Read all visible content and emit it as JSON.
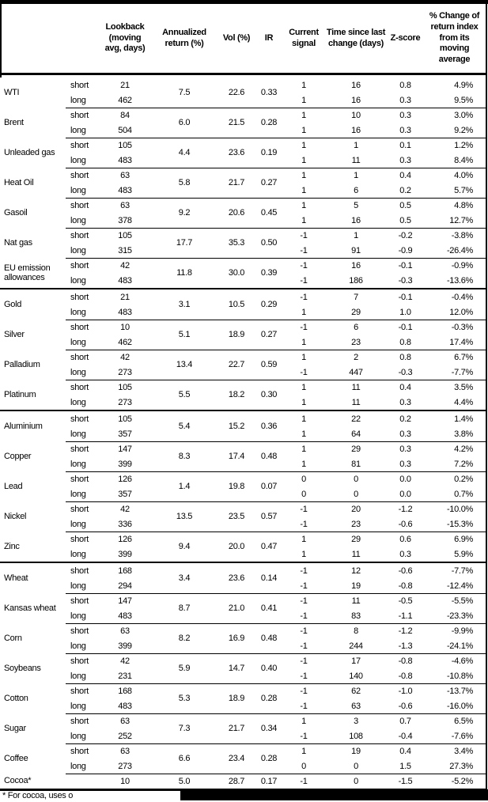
{
  "header": {
    "columns": [
      "Lookback (moving avg, days)",
      "Annualized return (%)",
      "Vol (%)",
      "IR",
      "Current signal",
      "Time since last change (days)",
      "Z-score",
      "% Change of return index from its moving average"
    ]
  },
  "groups": [
    {
      "commodities": [
        {
          "name": "WTI",
          "annualized_return": "7.5",
          "vol": "22.6",
          "ir": "0.33",
          "rows": [
            {
              "label": "short",
              "lookback": "21",
              "signal": "1",
              "time": "16",
              "zscore": "0.8",
              "pct_change": "4.9%"
            },
            {
              "label": "long",
              "lookback": "462",
              "signal": "1",
              "time": "16",
              "zscore": "0.3",
              "pct_change": "9.5%"
            }
          ]
        },
        {
          "name": "Brent",
          "annualized_return": "6.0",
          "vol": "21.5",
          "ir": "0.28",
          "rows": [
            {
              "label": "short",
              "lookback": "84",
              "signal": "1",
              "time": "10",
              "zscore": "0.3",
              "pct_change": "3.0%"
            },
            {
              "label": "long",
              "lookback": "504",
              "signal": "1",
              "time": "16",
              "zscore": "0.3",
              "pct_change": "9.2%"
            }
          ]
        },
        {
          "name": "Unleaded gas",
          "annualized_return": "4.4",
          "vol": "23.6",
          "ir": "0.19",
          "rows": [
            {
              "label": "short",
              "lookback": "105",
              "signal": "1",
              "time": "1",
              "zscore": "0.1",
              "pct_change": "1.2%"
            },
            {
              "label": "long",
              "lookback": "483",
              "signal": "1",
              "time": "11",
              "zscore": "0.3",
              "pct_change": "8.4%"
            }
          ]
        },
        {
          "name": "Heat Oil",
          "annualized_return": "5.8",
          "vol": "21.7",
          "ir": "0.27",
          "rows": [
            {
              "label": "short",
              "lookback": "63",
              "signal": "1",
              "time": "1",
              "zscore": "0.4",
              "pct_change": "4.0%"
            },
            {
              "label": "long",
              "lookback": "483",
              "signal": "1",
              "time": "6",
              "zscore": "0.2",
              "pct_change": "5.7%"
            }
          ]
        },
        {
          "name": "Gasoil",
          "annualized_return": "9.2",
          "vol": "20.6",
          "ir": "0.45",
          "rows": [
            {
              "label": "short",
              "lookback": "63",
              "signal": "1",
              "time": "5",
              "zscore": "0.5",
              "pct_change": "4.8%"
            },
            {
              "label": "long",
              "lookback": "378",
              "signal": "1",
              "time": "16",
              "zscore": "0.5",
              "pct_change": "12.7%"
            }
          ]
        },
        {
          "name": "Nat gas",
          "annualized_return": "17.7",
          "vol": "35.3",
          "ir": "0.50",
          "rows": [
            {
              "label": "short",
              "lookback": "105",
              "signal": "-1",
              "time": "1",
              "zscore": "-0.2",
              "pct_change": "-3.8%"
            },
            {
              "label": "long",
              "lookback": "315",
              "signal": "-1",
              "time": "91",
              "zscore": "-0.9",
              "pct_change": "-26.4%"
            }
          ]
        },
        {
          "name": "EU emission allowances",
          "annualized_return": "11.8",
          "vol": "30.0",
          "ir": "0.39",
          "rows": [
            {
              "label": "short",
              "lookback": "42",
              "signal": "-1",
              "time": "16",
              "zscore": "-0.1",
              "pct_change": "-0.9%"
            },
            {
              "label": "long",
              "lookback": "483",
              "signal": "-1",
              "time": "186",
              "zscore": "-0.3",
              "pct_change": "-13.6%"
            }
          ]
        }
      ]
    },
    {
      "commodities": [
        {
          "name": "Gold",
          "annualized_return": "3.1",
          "vol": "10.5",
          "ir": "0.29",
          "rows": [
            {
              "label": "short",
              "lookback": "21",
              "signal": "-1",
              "time": "7",
              "zscore": "-0.1",
              "pct_change": "-0.4%"
            },
            {
              "label": "long",
              "lookback": "483",
              "signal": "1",
              "time": "29",
              "zscore": "1.0",
              "pct_change": "12.0%"
            }
          ]
        },
        {
          "name": "Silver",
          "annualized_return": "5.1",
          "vol": "18.9",
          "ir": "0.27",
          "rows": [
            {
              "label": "short",
              "lookback": "10",
              "signal": "-1",
              "time": "6",
              "zscore": "-0.1",
              "pct_change": "-0.3%"
            },
            {
              "label": "long",
              "lookback": "462",
              "signal": "1",
              "time": "23",
              "zscore": "0.8",
              "pct_change": "17.4%"
            }
          ]
        },
        {
          "name": "Palladium",
          "annualized_return": "13.4",
          "vol": "22.7",
          "ir": "0.59",
          "rows": [
            {
              "label": "short",
              "lookback": "42",
              "signal": "1",
              "time": "2",
              "zscore": "0.8",
              "pct_change": "6.7%"
            },
            {
              "label": "long",
              "lookback": "273",
              "signal": "-1",
              "time": "447",
              "zscore": "-0.3",
              "pct_change": "-7.7%"
            }
          ]
        },
        {
          "name": "Platinum",
          "annualized_return": "5.5",
          "vol": "18.2",
          "ir": "0.30",
          "rows": [
            {
              "label": "short",
              "lookback": "105",
              "signal": "1",
              "time": "11",
              "zscore": "0.4",
              "pct_change": "3.5%"
            },
            {
              "label": "long",
              "lookback": "273",
              "signal": "1",
              "time": "11",
              "zscore": "0.3",
              "pct_change": "4.4%"
            }
          ]
        }
      ]
    },
    {
      "commodities": [
        {
          "name": "Aluminium",
          "annualized_return": "5.4",
          "vol": "15.2",
          "ir": "0.36",
          "rows": [
            {
              "label": "short",
              "lookback": "105",
              "signal": "1",
              "time": "22",
              "zscore": "0.2",
              "pct_change": "1.4%"
            },
            {
              "label": "long",
              "lookback": "357",
              "signal": "1",
              "time": "64",
              "zscore": "0.3",
              "pct_change": "3.8%"
            }
          ]
        },
        {
          "name": "Copper",
          "annualized_return": "8.3",
          "vol": "17.4",
          "ir": "0.48",
          "rows": [
            {
              "label": "short",
              "lookback": "147",
              "signal": "1",
              "time": "29",
              "zscore": "0.3",
              "pct_change": "4.2%"
            },
            {
              "label": "long",
              "lookback": "399",
              "signal": "1",
              "time": "81",
              "zscore": "0.3",
              "pct_change": "7.2%"
            }
          ]
        },
        {
          "name": "Lead",
          "annualized_return": "1.4",
          "vol": "19.8",
          "ir": "0.07",
          "rows": [
            {
              "label": "short",
              "lookback": "126",
              "signal": "0",
              "time": "0",
              "zscore": "0.0",
              "pct_change": "0.2%"
            },
            {
              "label": "long",
              "lookback": "357",
              "signal": "0",
              "time": "0",
              "zscore": "0.0",
              "pct_change": "0.7%"
            }
          ]
        },
        {
          "name": "Nickel",
          "annualized_return": "13.5",
          "vol": "23.5",
          "ir": "0.57",
          "rows": [
            {
              "label": "short",
              "lookback": "42",
              "signal": "-1",
              "time": "20",
              "zscore": "-1.2",
              "pct_change": "-10.0%"
            },
            {
              "label": "long",
              "lookback": "336",
              "signal": "-1",
              "time": "23",
              "zscore": "-0.6",
              "pct_change": "-15.3%"
            }
          ]
        },
        {
          "name": "Zinc",
          "annualized_return": "9.4",
          "vol": "20.0",
          "ir": "0.47",
          "rows": [
            {
              "label": "short",
              "lookback": "126",
              "signal": "1",
              "time": "29",
              "zscore": "0.6",
              "pct_change": "6.9%"
            },
            {
              "label": "long",
              "lookback": "399",
              "signal": "1",
              "time": "11",
              "zscore": "0.3",
              "pct_change": "5.9%"
            }
          ]
        }
      ]
    },
    {
      "commodities": [
        {
          "name": "Wheat",
          "annualized_return": "3.4",
          "vol": "23.6",
          "ir": "0.14",
          "rows": [
            {
              "label": "short",
              "lookback": "168",
              "signal": "-1",
              "time": "12",
              "zscore": "-0.6",
              "pct_change": "-7.7%"
            },
            {
              "label": "long",
              "lookback": "294",
              "signal": "-1",
              "time": "19",
              "zscore": "-0.8",
              "pct_change": "-12.4%"
            }
          ]
        },
        {
          "name": "Kansas wheat",
          "annualized_return": "8.7",
          "vol": "21.0",
          "ir": "0.41",
          "rows": [
            {
              "label": "short",
              "lookback": "147",
              "signal": "-1",
              "time": "11",
              "zscore": "-0.5",
              "pct_change": "-5.5%"
            },
            {
              "label": "long",
              "lookback": "483",
              "signal": "-1",
              "time": "83",
              "zscore": "-1.1",
              "pct_change": "-23.3%"
            }
          ]
        },
        {
          "name": "Corn",
          "annualized_return": "8.2",
          "vol": "16.9",
          "ir": "0.48",
          "rows": [
            {
              "label": "short",
              "lookback": "63",
              "signal": "-1",
              "time": "8",
              "zscore": "-1.2",
              "pct_change": "-9.9%"
            },
            {
              "label": "long",
              "lookback": "399",
              "signal": "-1",
              "time": "244",
              "zscore": "-1.3",
              "pct_change": "-24.1%"
            }
          ]
        },
        {
          "name": "Soybeans",
          "annualized_return": "5.9",
          "vol": "14.7",
          "ir": "0.40",
          "rows": [
            {
              "label": "short",
              "lookback": "42",
              "signal": "-1",
              "time": "17",
              "zscore": "-0.8",
              "pct_change": "-4.6%"
            },
            {
              "label": "long",
              "lookback": "231",
              "signal": "-1",
              "time": "140",
              "zscore": "-0.8",
              "pct_change": "-10.8%"
            }
          ]
        },
        {
          "name": "Cotton",
          "annualized_return": "5.3",
          "vol": "18.9",
          "ir": "0.28",
          "rows": [
            {
              "label": "short",
              "lookback": "168",
              "signal": "-1",
              "time": "62",
              "zscore": "-1.0",
              "pct_change": "-13.7%"
            },
            {
              "label": "long",
              "lookback": "483",
              "signal": "-1",
              "time": "63",
              "zscore": "-0.6",
              "pct_change": "-16.0%"
            }
          ]
        },
        {
          "name": "Sugar",
          "annualized_return": "7.3",
          "vol": "21.7",
          "ir": "0.34",
          "rows": [
            {
              "label": "short",
              "lookback": "63",
              "signal": "1",
              "time": "3",
              "zscore": "0.7",
              "pct_change": "6.5%"
            },
            {
              "label": "long",
              "lookback": "252",
              "signal": "-1",
              "time": "108",
              "zscore": "-0.4",
              "pct_change": "-7.6%"
            }
          ]
        },
        {
          "name": "Coffee",
          "annualized_return": "6.6",
          "vol": "23.4",
          "ir": "0.28",
          "rows": [
            {
              "label": "short",
              "lookback": "63",
              "signal": "1",
              "time": "19",
              "zscore": "0.4",
              "pct_change": "3.4%"
            },
            {
              "label": "long",
              "lookback": "273",
              "signal": "0",
              "time": "0",
              "zscore": "1.5",
              "pct_change": "27.3%"
            }
          ]
        },
        {
          "name": "Cocoa*",
          "annualized_return": "5.0",
          "vol": "28.7",
          "ir": "0.17",
          "rows": [
            {
              "label": "",
              "lookback": "10",
              "signal": "-1",
              "time": "0",
              "zscore": "-1.5",
              "pct_change": "-5.2%"
            }
          ]
        }
      ]
    }
  ],
  "footnote": "* For cocoa, uses o",
  "colors": {
    "text": "#000000",
    "background": "#ffffff",
    "border": "#000000",
    "redaction": "#000000"
  }
}
